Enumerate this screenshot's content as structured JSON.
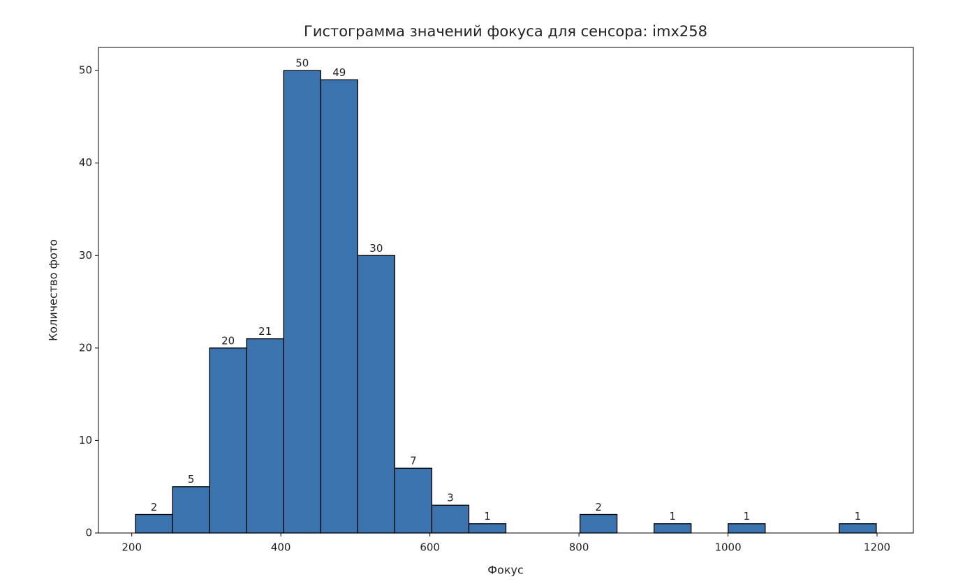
{
  "chart_data": {
    "type": "histogram",
    "title": "Гистограмма значений фокуса для сенсора: imx258",
    "x_label": "Фокус",
    "y_label": "Количество фото",
    "bins": [
      205,
      254.7,
      304.4,
      354.1,
      403.8,
      453.5,
      503.2,
      552.9,
      602.6,
      652.3,
      702,
      751.7,
      801.4,
      851.1,
      900.8,
      950.5,
      1000.2,
      1049.9,
      1099.6,
      1149.3,
      1199
    ],
    "counts": [
      2,
      5,
      20,
      21,
      50,
      49,
      30,
      7,
      3,
      1,
      0,
      0,
      2,
      0,
      1,
      0,
      1,
      0,
      0,
      1
    ],
    "color": "#3a73ae",
    "edgecolor": "#000000",
    "xlim": [
      155.3,
      1248.7
    ],
    "ylim": [
      0,
      52.5
    ],
    "xticks": [
      200,
      400,
      600,
      800,
      1000,
      1200
    ],
    "yticks": [
      0,
      10,
      20,
      30,
      40,
      50
    ],
    "grid": false
  }
}
